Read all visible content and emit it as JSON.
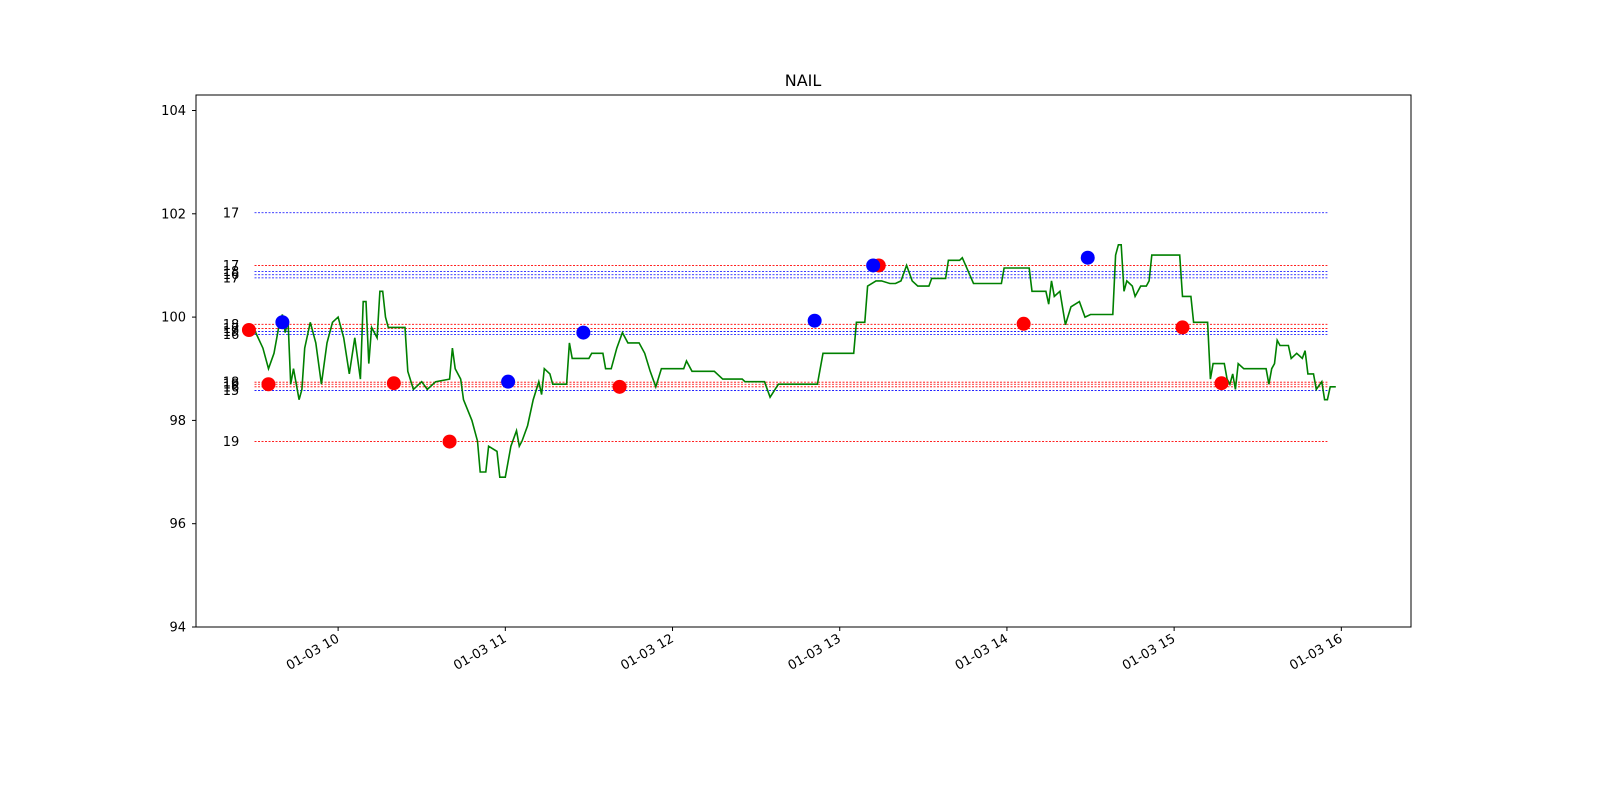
{
  "chart_data": {
    "type": "line",
    "title": "NAIL",
    "xlabel": "",
    "ylabel": "",
    "xlim": [
      "01-03 09:09",
      "01-03 16:25"
    ],
    "ylim": [
      94,
      104.3
    ],
    "yticks": [
      94,
      96,
      98,
      100,
      102,
      104
    ],
    "xticks": [
      {
        "t": "01-03 10:00",
        "label": "01-03 10"
      },
      {
        "t": "01-03 11:00",
        "label": "01-03 11"
      },
      {
        "t": "01-03 12:00",
        "label": "01-03 12"
      },
      {
        "t": "01-03 13:00",
        "label": "01-03 13"
      },
      {
        "t": "01-03 14:00",
        "label": "01-03 14"
      },
      {
        "t": "01-03 15:00",
        "label": "01-03 15"
      },
      {
        "t": "01-03 16:00",
        "label": "01-03 16"
      }
    ],
    "grid": false,
    "colors": {
      "price": "#008000",
      "red": "#ff0000",
      "blue": "#0000ff"
    },
    "level_lines": {
      "start": "01-03 09:30",
      "end": "01-03 15:55",
      "levels": [
        {
          "price": 102.02,
          "color": "blue",
          "label": "17"
        },
        {
          "price": 101.0,
          "color": "red",
          "label": "17"
        },
        {
          "price": 100.88,
          "color": "blue",
          "label": "18"
        },
        {
          "price": 100.82,
          "color": "blue",
          "label": "16"
        },
        {
          "price": 100.76,
          "color": "blue",
          "label": "17"
        },
        {
          "price": 99.86,
          "color": "red",
          "label": "18"
        },
        {
          "price": 99.78,
          "color": "red",
          "label": "17"
        },
        {
          "price": 99.72,
          "color": "blue",
          "label": "19"
        },
        {
          "price": 99.66,
          "color": "blue",
          "label": "16"
        },
        {
          "price": 98.74,
          "color": "red",
          "label": "18"
        },
        {
          "price": 98.7,
          "color": "red",
          "label": "19"
        },
        {
          "price": 98.65,
          "color": "red",
          "label": "16"
        },
        {
          "price": 98.58,
          "color": "blue",
          "label": "15"
        },
        {
          "price": 97.59,
          "color": "red",
          "label": "19"
        }
      ]
    },
    "series": [
      {
        "color": "green",
        "points": [
          [
            "01-03 09:30",
            99.75
          ],
          [
            "01-03 09:33",
            99.4
          ],
          [
            "01-03 09:35",
            99.0
          ],
          [
            "01-03 09:37",
            99.3
          ],
          [
            "01-03 09:39",
            99.9
          ],
          [
            "01-03 09:40",
            100.05
          ],
          [
            "01-03 09:41",
            99.7
          ],
          [
            "01-03 09:42",
            99.95
          ],
          [
            "01-03 09:43",
            98.7
          ],
          [
            "01-03 09:44",
            99.0
          ],
          [
            "01-03 09:46",
            98.4
          ],
          [
            "01-03 09:47",
            98.6
          ],
          [
            "01-03 09:48",
            99.4
          ],
          [
            "01-03 09:50",
            99.9
          ],
          [
            "01-03 09:52",
            99.5
          ],
          [
            "01-03 09:54",
            98.7
          ],
          [
            "01-03 09:56",
            99.5
          ],
          [
            "01-03 09:58",
            99.9
          ],
          [
            "01-03 10:00",
            100.0
          ],
          [
            "01-03 10:02",
            99.6
          ],
          [
            "01-03 10:04",
            98.9
          ],
          [
            "01-03 10:06",
            99.6
          ],
          [
            "01-03 10:08",
            98.8
          ],
          [
            "01-03 10:09",
            100.3
          ],
          [
            "01-03 10:10",
            100.3
          ],
          [
            "01-03 10:11",
            99.1
          ],
          [
            "01-03 10:12",
            99.8
          ],
          [
            "01-03 10:14",
            99.6
          ],
          [
            "01-03 10:15",
            100.5
          ],
          [
            "01-03 10:16",
            100.5
          ],
          [
            "01-03 10:17",
            100.0
          ],
          [
            "01-03 10:18",
            99.8
          ],
          [
            "01-03 10:24",
            99.8
          ],
          [
            "01-03 10:25",
            98.95
          ],
          [
            "01-03 10:27",
            98.6
          ],
          [
            "01-03 10:30",
            98.75
          ],
          [
            "01-03 10:32",
            98.6
          ],
          [
            "01-03 10:35",
            98.75
          ],
          [
            "01-03 10:40",
            98.8
          ],
          [
            "01-03 10:41",
            99.4
          ],
          [
            "01-03 10:42",
            99.0
          ],
          [
            "01-03 10:44",
            98.8
          ],
          [
            "01-03 10:45",
            98.4
          ],
          [
            "01-03 10:48",
            98.0
          ],
          [
            "01-03 10:50",
            97.6
          ],
          [
            "01-03 10:51",
            97.0
          ],
          [
            "01-03 10:53",
            97.0
          ],
          [
            "01-03 10:54",
            97.5
          ],
          [
            "01-03 10:57",
            97.4
          ],
          [
            "01-03 10:58",
            96.9
          ],
          [
            "01-03 11:00",
            96.9
          ],
          [
            "01-03 11:02",
            97.5
          ],
          [
            "01-03 11:04",
            97.8
          ],
          [
            "01-03 11:05",
            97.5
          ],
          [
            "01-03 11:06",
            97.6
          ],
          [
            "01-03 11:08",
            97.9
          ],
          [
            "01-03 11:10",
            98.4
          ],
          [
            "01-03 11:12",
            98.75
          ],
          [
            "01-03 11:13",
            98.5
          ],
          [
            "01-03 11:14",
            99.0
          ],
          [
            "01-03 11:16",
            98.9
          ],
          [
            "01-03 11:17",
            98.7
          ],
          [
            "01-03 11:22",
            98.7
          ],
          [
            "01-03 11:23",
            99.5
          ],
          [
            "01-03 11:24",
            99.2
          ],
          [
            "01-03 11:30",
            99.2
          ],
          [
            "01-03 11:31",
            99.3
          ],
          [
            "01-03 11:35",
            99.3
          ],
          [
            "01-03 11:36",
            99.0
          ],
          [
            "01-03 11:38",
            99.0
          ],
          [
            "01-03 11:40",
            99.4
          ],
          [
            "01-03 11:42",
            99.7
          ],
          [
            "01-03 11:44",
            99.5
          ],
          [
            "01-03 11:48",
            99.5
          ],
          [
            "01-03 11:50",
            99.3
          ],
          [
            "01-03 11:52",
            98.95
          ],
          [
            "01-03 11:54",
            98.65
          ],
          [
            "01-03 11:56",
            99.0
          ],
          [
            "01-03 12:04",
            99.0
          ],
          [
            "01-03 12:05",
            99.15
          ],
          [
            "01-03 12:07",
            98.95
          ],
          [
            "01-03 12:15",
            98.95
          ],
          [
            "01-03 12:18",
            98.8
          ],
          [
            "01-03 12:25",
            98.8
          ],
          [
            "01-03 12:26",
            98.75
          ],
          [
            "01-03 12:33",
            98.75
          ],
          [
            "01-03 12:35",
            98.45
          ],
          [
            "01-03 12:38",
            98.7
          ],
          [
            "01-03 12:52",
            98.7
          ],
          [
            "01-03 12:54",
            99.3
          ],
          [
            "01-03 12:56",
            99.3
          ],
          [
            "01-03 13:05",
            99.3
          ],
          [
            "01-03 13:06",
            99.9
          ],
          [
            "01-03 13:09",
            99.9
          ],
          [
            "01-03 13:10",
            100.6
          ],
          [
            "01-03 13:13",
            100.7
          ],
          [
            "01-03 13:15",
            100.7
          ],
          [
            "01-03 13:18",
            100.65
          ],
          [
            "01-03 13:20",
            100.65
          ],
          [
            "01-03 13:22",
            100.7
          ],
          [
            "01-03 13:24",
            101.0
          ],
          [
            "01-03 13:26",
            100.7
          ],
          [
            "01-03 13:28",
            100.6
          ],
          [
            "01-03 13:32",
            100.6
          ],
          [
            "01-03 13:33",
            100.75
          ],
          [
            "01-03 13:38",
            100.75
          ],
          [
            "01-03 13:39",
            101.1
          ],
          [
            "01-03 13:43",
            101.1
          ],
          [
            "01-03 13:44",
            101.15
          ],
          [
            "01-03 13:46",
            100.9
          ],
          [
            "01-03 13:48",
            100.65
          ],
          [
            "01-03 13:58",
            100.65
          ],
          [
            "01-03 13:59",
            100.95
          ],
          [
            "01-03 14:08",
            100.95
          ],
          [
            "01-03 14:09",
            100.5
          ],
          [
            "01-03 14:14",
            100.5
          ],
          [
            "01-03 14:15",
            100.25
          ],
          [
            "01-03 14:16",
            100.7
          ],
          [
            "01-03 14:17",
            100.4
          ],
          [
            "01-03 14:19",
            100.5
          ],
          [
            "01-03 14:21",
            99.85
          ],
          [
            "01-03 14:23",
            100.2
          ],
          [
            "01-03 14:26",
            100.3
          ],
          [
            "01-03 14:28",
            100.0
          ],
          [
            "01-03 14:30",
            100.05
          ],
          [
            "01-03 14:38",
            100.05
          ],
          [
            "01-03 14:39",
            101.2
          ],
          [
            "01-03 14:40",
            101.4
          ],
          [
            "01-03 14:41",
            101.4
          ],
          [
            "01-03 14:42",
            100.5
          ],
          [
            "01-03 14:43",
            100.7
          ],
          [
            "01-03 14:45",
            100.6
          ],
          [
            "01-03 14:46",
            100.4
          ],
          [
            "01-03 14:48",
            100.6
          ],
          [
            "01-03 14:50",
            100.6
          ],
          [
            "01-03 14:51",
            100.7
          ],
          [
            "01-03 14:52",
            101.2
          ],
          [
            "01-03 14:53",
            101.2
          ],
          [
            "01-03 15:02",
            101.2
          ],
          [
            "01-03 15:03",
            100.4
          ],
          [
            "01-03 15:06",
            100.4
          ],
          [
            "01-03 15:07",
            99.9
          ],
          [
            "01-03 15:12",
            99.9
          ],
          [
            "01-03 15:13",
            98.8
          ],
          [
            "01-03 15:14",
            99.1
          ],
          [
            "01-03 15:18",
            99.1
          ],
          [
            "01-03 15:19",
            98.8
          ],
          [
            "01-03 15:20",
            98.7
          ],
          [
            "01-03 15:21",
            98.9
          ],
          [
            "01-03 15:22",
            98.6
          ],
          [
            "01-03 15:23",
            99.1
          ],
          [
            "01-03 15:25",
            99.0
          ],
          [
            "01-03 15:33",
            99.0
          ],
          [
            "01-03 15:34",
            98.7
          ],
          [
            "01-03 15:35",
            99.0
          ],
          [
            "01-03 15:36",
            99.1
          ],
          [
            "01-03 15:37",
            99.55
          ],
          [
            "01-03 15:38",
            99.45
          ],
          [
            "01-03 15:41",
            99.45
          ],
          [
            "01-03 15:42",
            99.2
          ],
          [
            "01-03 15:44",
            99.3
          ],
          [
            "01-03 15:46",
            99.2
          ],
          [
            "01-03 15:47",
            99.35
          ],
          [
            "01-03 15:48",
            98.9
          ],
          [
            "01-03 15:50",
            98.9
          ],
          [
            "01-03 15:51",
            98.6
          ],
          [
            "01-03 15:53",
            98.75
          ],
          [
            "01-03 15:54",
            98.4
          ],
          [
            "01-03 15:55",
            98.4
          ],
          [
            "01-03 15:56",
            98.65
          ],
          [
            "01-03 15:58",
            98.65
          ]
        ]
      }
    ],
    "markers": [
      {
        "t": "01-03 09:28",
        "price": 99.75,
        "color": "red"
      },
      {
        "t": "01-03 09:35",
        "price": 98.7,
        "color": "red"
      },
      {
        "t": "01-03 09:40",
        "price": 99.9,
        "color": "blue"
      },
      {
        "t": "01-03 10:20",
        "price": 98.72,
        "color": "red"
      },
      {
        "t": "01-03 10:40",
        "price": 97.59,
        "color": "red"
      },
      {
        "t": "01-03 11:01",
        "price": 98.75,
        "color": "blue"
      },
      {
        "t": "01-03 11:28",
        "price": 99.7,
        "color": "blue"
      },
      {
        "t": "01-03 11:41",
        "price": 98.65,
        "color": "red"
      },
      {
        "t": "01-03 12:51",
        "price": 99.93,
        "color": "blue"
      },
      {
        "t": "01-03 13:14",
        "price": 101.0,
        "color": "red"
      },
      {
        "t": "01-03 13:12",
        "price": 101.0,
        "color": "blue"
      },
      {
        "t": "01-03 14:06",
        "price": 99.87,
        "color": "red"
      },
      {
        "t": "01-03 14:29",
        "price": 101.15,
        "color": "blue"
      },
      {
        "t": "01-03 15:03",
        "price": 99.8,
        "color": "red"
      },
      {
        "t": "01-03 15:17",
        "price": 98.72,
        "color": "red"
      }
    ]
  }
}
